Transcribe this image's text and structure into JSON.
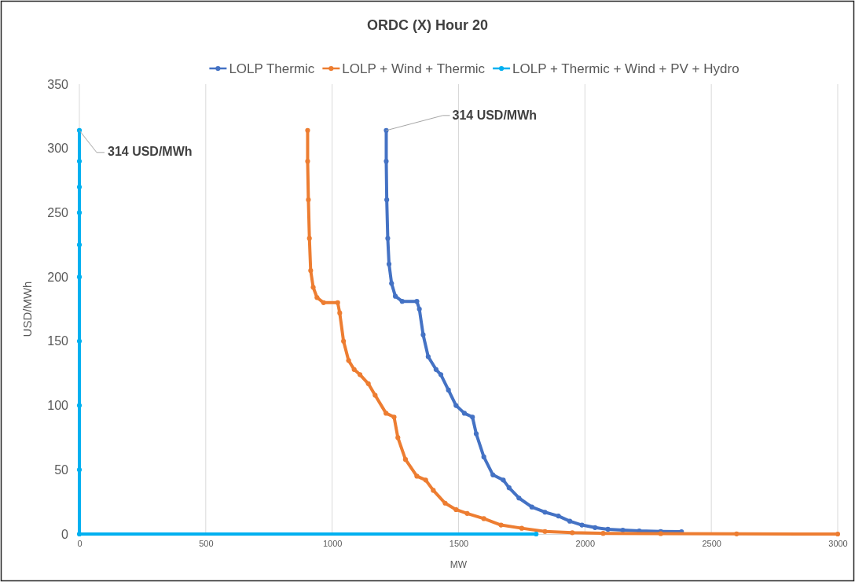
{
  "chart_data": {
    "type": "line",
    "title": "ORDC (X) Hour 20",
    "xlabel": "MW",
    "ylabel": "USD/MWh",
    "xlim": [
      0,
      3000
    ],
    "xticks": [
      0,
      500,
      1000,
      1500,
      2000,
      2500,
      3000
    ],
    "ylim": [
      0,
      350
    ],
    "yticks": [
      0,
      50,
      100,
      150,
      200,
      250,
      300,
      350
    ],
    "grid": "x",
    "legend": "top",
    "marker": "circle",
    "line_style": "solid",
    "series": [
      {
        "name": "LOLP Thermic",
        "color": "#4472c4",
        "x": [
          1214,
          1214,
          1216,
          1220,
          1225,
          1235,
          1250,
          1277,
          1335,
          1345,
          1360,
          1380,
          1411,
          1430,
          1460,
          1490,
          1523,
          1555,
          1570,
          1600,
          1636,
          1677,
          1700,
          1739,
          1790,
          1842,
          1895,
          1940,
          1988,
          2040,
          2091,
          2150,
          2215,
          2300,
          2382
        ],
        "values": [
          314,
          290,
          260,
          230,
          210,
          195,
          185,
          181,
          181,
          175,
          155,
          138,
          128,
          124,
          112,
          100,
          94,
          91,
          78,
          60,
          46,
          42,
          36,
          28,
          21,
          17,
          14,
          10,
          7,
          5,
          3.7,
          3,
          2.4,
          2,
          1.8
        ]
      },
      {
        "name": "LOLP + Wind + Thermic",
        "color": "#ed7d31",
        "x": [
          903,
          903,
          906,
          910,
          915,
          925,
          940,
          966,
          1022,
          1030,
          1045,
          1065,
          1087,
          1110,
          1143,
          1170,
          1213,
          1245,
          1260,
          1290,
          1335,
          1370,
          1400,
          1447,
          1490,
          1534,
          1600,
          1668,
          1750,
          1842,
          1950,
          2072,
          2300,
          2600,
          3000
        ],
        "values": [
          314,
          290,
          260,
          230,
          205,
          192,
          184,
          180,
          180,
          172,
          150,
          135,
          128,
          124,
          117,
          108,
          94,
          91,
          75,
          58,
          45,
          42,
          34,
          24,
          19,
          16,
          12,
          7,
          4.5,
          2,
          1,
          0.5,
          0.3,
          0.1,
          0
        ]
      },
      {
        "name": "LOLP + Thermic + Wind + PV + Hydro",
        "color": "#00b0f0",
        "x": [
          0,
          0,
          0,
          0,
          0,
          0,
          0,
          0,
          0,
          0,
          1807
        ],
        "values": [
          314,
          290,
          270,
          250,
          225,
          200,
          150,
          100,
          50,
          0,
          0
        ]
      }
    ],
    "annotations": [
      {
        "text": "314 USD/MWh",
        "x": 0,
        "y": 314
      },
      {
        "text": "314 USD/MWh",
        "x": 1214,
        "y": 314
      }
    ]
  }
}
